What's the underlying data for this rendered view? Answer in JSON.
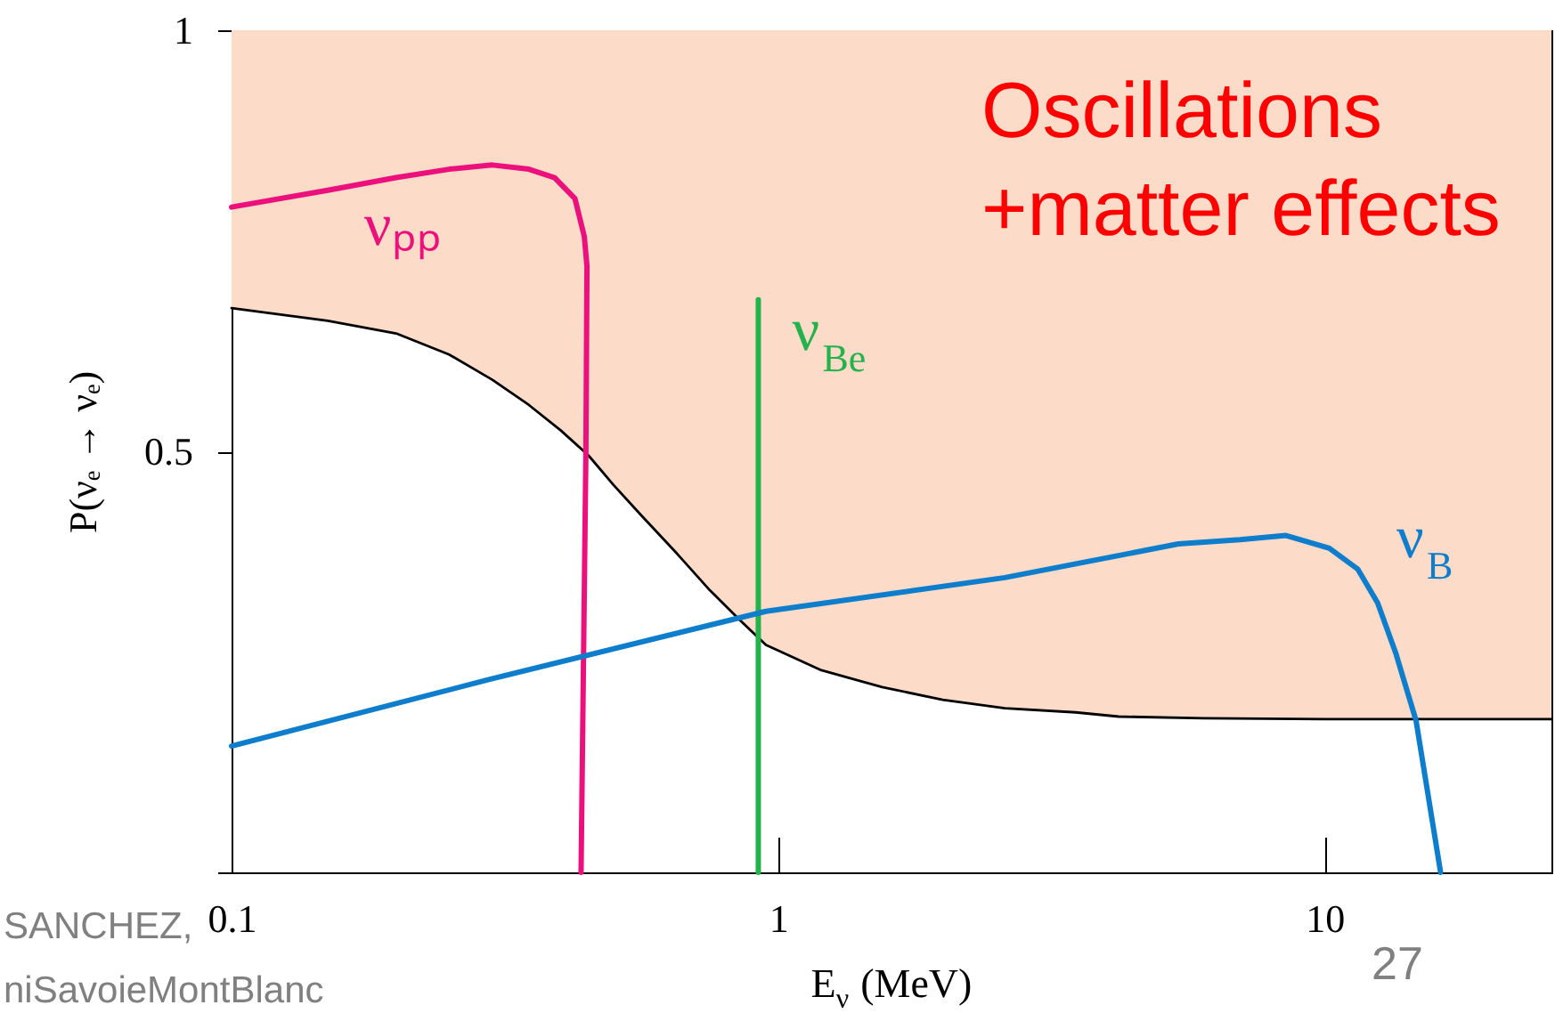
{
  "chart_data": {
    "type": "line",
    "ylabel": "P(νₑ → νₑ)",
    "xlabel": "E$_{ν}$ (MeV)",
    "log": "x",
    "xlim": [
      0.1,
      26
    ],
    "ylim": [
      0,
      1
    ],
    "xticks": [
      0.1,
      1,
      10
    ],
    "yticks": [
      {
        "value": 0,
        "label": null
      },
      0.5,
      1
    ],
    "annotations": [
      "Oscillations\n+matter effects",
      "SANCHEZ,",
      "niSavoieMontBlanc",
      "27"
    ],
    "series": [
      {
        "color": "#000000",
        "x": [
          0.1,
          0.15,
          0.2,
          0.25,
          0.3,
          0.35,
          0.4,
          0.45,
          0.5,
          0.56,
          0.65,
          0.75,
          0.85,
          0.95,
          1.2,
          1.55,
          2,
          2.6,
          3.5,
          4.2,
          6,
          10,
          26
        ],
        "values": [
          0.67,
          0.655,
          0.64,
          0.615,
          0.585,
          0.555,
          0.525,
          0.495,
          0.46,
          0.425,
          0.38,
          0.335,
          0.3,
          0.27,
          0.24,
          0.22,
          0.205,
          0.195,
          0.19,
          0.185,
          0.183,
          0.182,
          0.182
        ],
        "lower": [
          0.67,
          0.655,
          0.64,
          0.615,
          0.585,
          0.555,
          0.525,
          0.495,
          0.46,
          0.425,
          0.38,
          0.335,
          0.3,
          0.27,
          0.24,
          0.22,
          0.205,
          0.195,
          0.19,
          0.185,
          0.183,
          0.182,
          0.182
        ],
        "upper": [
          1,
          1,
          1,
          1,
          1,
          1,
          1,
          1,
          1,
          1,
          1,
          1,
          1,
          1,
          1,
          1,
          1,
          1,
          1,
          1,
          1,
          1,
          1
        ]
      },
      {
        "name": "νₚₚ",
        "color": "#ec107c",
        "x": [
          0.1,
          0.15,
          0.2,
          0.25,
          0.3,
          0.35,
          0.39,
          0.425,
          0.442,
          0.447,
          0.445,
          0.436
        ],
        "values": [
          0.79,
          0.81,
          0.825,
          0.835,
          0.84,
          0.835,
          0.825,
          0.8,
          0.755,
          0.72,
          0.5,
          0
        ]
      },
      {
        "name": "ν$_{Be}$",
        "color": "#23b24b",
        "x": [
          0.92,
          0.92
        ],
        "values": [
          0,
          0.68
        ]
      },
      {
        "name": "ν$_{B}$",
        "color": "#0d7dcc",
        "x": [
          0.1,
          0.3,
          0.95,
          2.6,
          5.4,
          7,
          8.5,
          10.2,
          11.5,
          12.5,
          13.5,
          14.7,
          16.3
        ],
        "values": [
          0.15,
          0.23,
          0.31,
          0.35,
          0.39,
          0.395,
          0.4,
          0.385,
          0.36,
          0.32,
          0.26,
          0.18,
          0
        ]
      }
    ]
  }
}
